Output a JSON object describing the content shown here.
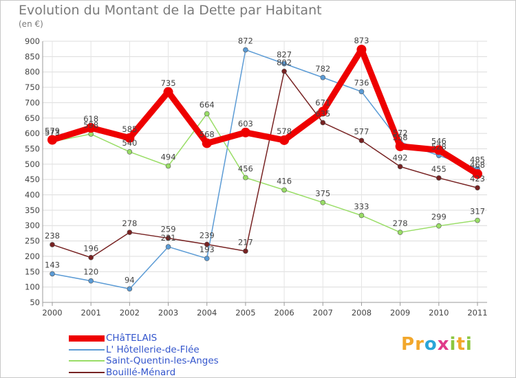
{
  "title": "Evolution du Montant de la Dette par Habitant",
  "unit": "(en €)",
  "brand": "Proxiti",
  "brand_colors": [
    "#f2a72b",
    "#f2a72b",
    "#2aa5d8",
    "#e03b8a",
    "#8cc63f",
    "#f2a72b",
    "#8cc63f"
  ],
  "chart_data": {
    "type": "line",
    "categories": [
      "2000",
      "2001",
      "2002",
      "2003",
      "2004",
      "2005",
      "2006",
      "2007",
      "2008",
      "2009",
      "2010",
      "2011"
    ],
    "ylim": [
      50,
      900
    ],
    "yticks": [
      50,
      100,
      150,
      200,
      250,
      300,
      350,
      400,
      450,
      500,
      550,
      600,
      650,
      700,
      750,
      800,
      850,
      900
    ],
    "grid": true,
    "series": [
      {
        "name": "CHâTELAIS",
        "color": "#ee0000",
        "values": [
          579,
          618,
          585,
          735,
          568,
          603,
          578,
          671,
          873,
          558,
          546,
          468
        ]
      },
      {
        "name": "L' Hôtellerie-de-Flée",
        "color": "#5b9bd5",
        "values": [
          143,
          120,
          94,
          231,
          193,
          872,
          827,
          782,
          736,
          572,
          528,
          485
        ]
      },
      {
        "name": "Saint-Quentin-les-Anges",
        "color": "#99dd66",
        "values": [
          573,
          598,
          540,
          494,
          664,
          456,
          416,
          375,
          333,
          278,
          299,
          317
        ]
      },
      {
        "name": "Bouillé-Ménard",
        "color": "#772222",
        "values": [
          238,
          196,
          278,
          259,
          239,
          217,
          802,
          635,
          577,
          492,
          455,
          423
        ]
      }
    ]
  }
}
